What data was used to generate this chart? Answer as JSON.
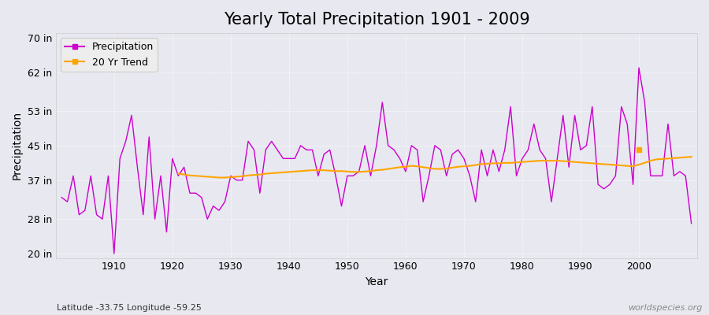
{
  "title": "Yearly Total Precipitation 1901 - 2009",
  "xlabel": "Year",
  "ylabel": "Precipitation",
  "subtitle": "Latitude -33.75 Longitude -59.25",
  "watermark": "worldspecies.org",
  "years": [
    1901,
    1902,
    1903,
    1904,
    1905,
    1906,
    1907,
    1908,
    1909,
    1910,
    1911,
    1912,
    1913,
    1914,
    1915,
    1916,
    1917,
    1918,
    1919,
    1920,
    1921,
    1922,
    1923,
    1924,
    1925,
    1926,
    1927,
    1928,
    1929,
    1930,
    1931,
    1932,
    1933,
    1934,
    1935,
    1936,
    1937,
    1938,
    1939,
    1940,
    1941,
    1942,
    1943,
    1944,
    1945,
    1946,
    1947,
    1948,
    1949,
    1950,
    1951,
    1952,
    1953,
    1954,
    1955,
    1956,
    1957,
    1958,
    1959,
    1960,
    1961,
    1962,
    1963,
    1964,
    1965,
    1966,
    1967,
    1968,
    1969,
    1970,
    1971,
    1972,
    1973,
    1974,
    1975,
    1976,
    1977,
    1978,
    1979,
    1980,
    1981,
    1982,
    1983,
    1984,
    1985,
    1986,
    1987,
    1988,
    1989,
    1990,
    1991,
    1992,
    1993,
    1994,
    1995,
    1996,
    1997,
    1998,
    1999,
    2000,
    2001,
    2002,
    2003,
    2004,
    2005,
    2006,
    2007,
    2008,
    2009
  ],
  "precip": [
    33,
    32,
    38,
    29,
    30,
    38,
    29,
    28,
    38,
    20,
    42,
    46,
    52,
    40,
    29,
    47,
    28,
    38,
    25,
    42,
    38,
    40,
    34,
    34,
    33,
    28,
    31,
    30,
    32,
    38,
    37,
    37,
    46,
    44,
    34,
    44,
    46,
    44,
    42,
    42,
    42,
    45,
    44,
    44,
    38,
    43,
    44,
    38,
    31,
    38,
    38,
    39,
    45,
    38,
    45,
    55,
    45,
    44,
    42,
    39,
    45,
    44,
    32,
    38,
    45,
    44,
    38,
    43,
    44,
    42,
    38,
    32,
    44,
    38,
    44,
    39,
    44,
    54,
    38,
    42,
    44,
    50,
    44,
    42,
    32,
    42,
    52,
    40,
    52,
    44,
    45,
    54,
    36,
    35,
    36,
    38,
    54,
    50,
    36,
    63,
    55,
    38,
    38,
    38,
    50,
    38,
    39,
    38,
    27
  ],
  "trend_years": [
    1921,
    1922,
    1923,
    1924,
    1925,
    1926,
    1927,
    1928,
    1929,
    1930,
    1931,
    1932,
    1933,
    1934,
    1935,
    1936,
    1937,
    1938,
    1939,
    1940,
    1941,
    1942,
    1943,
    1944,
    1945,
    1946,
    1947,
    1948,
    1949,
    1950,
    1951,
    1952,
    1953,
    1954,
    1955,
    1956,
    1957,
    1958,
    1959,
    1960,
    1961,
    1962,
    1963,
    1964,
    1965,
    1966,
    1967,
    1968,
    1969,
    1970,
    1971,
    1972,
    1973,
    1974,
    1975,
    1976,
    1977,
    1978,
    1979,
    1980,
    1981,
    1982,
    1983,
    1984,
    1985,
    1986,
    1987,
    1988,
    1989,
    1990,
    1991,
    1992,
    1993,
    1994,
    1995,
    1996,
    1997,
    1998,
    1999,
    2001,
    2002,
    2003,
    2004,
    2005,
    2006,
    2007,
    2008,
    2009
  ],
  "trend": [
    38.5,
    38.3,
    38.1,
    38.0,
    37.9,
    37.8,
    37.7,
    37.6,
    37.6,
    37.7,
    37.8,
    37.9,
    38.1,
    38.2,
    38.3,
    38.5,
    38.6,
    38.7,
    38.8,
    38.9,
    39.0,
    39.1,
    39.2,
    39.3,
    39.3,
    39.3,
    39.2,
    39.1,
    39.1,
    39.0,
    38.9,
    38.9,
    39.0,
    39.1,
    39.3,
    39.4,
    39.6,
    39.8,
    40.0,
    40.1,
    40.3,
    40.2,
    40.0,
    39.8,
    39.6,
    39.6,
    39.7,
    39.9,
    40.1,
    40.2,
    40.3,
    40.5,
    40.7,
    40.8,
    40.9,
    40.9,
    41.0,
    41.0,
    41.1,
    41.2,
    41.3,
    41.4,
    41.5,
    41.5,
    41.5,
    41.5,
    41.4,
    41.3,
    41.2,
    41.1,
    41.0,
    40.9,
    40.8,
    40.7,
    40.6,
    40.5,
    40.4,
    40.3,
    40.2,
    41.0,
    41.5,
    41.8,
    41.9,
    42.0,
    42.1,
    42.2,
    42.3,
    42.4
  ],
  "trend_single_point_year": 2000,
  "trend_single_point_value": 44,
  "precip_color": "#CC00CC",
  "trend_color": "#FFA500",
  "bg_color": "#e8e8f0",
  "plot_bg_color": "#e8e8f0",
  "yticks": [
    20,
    28,
    37,
    45,
    53,
    62,
    70
  ],
  "ytick_labels": [
    "20 in",
    "28 in",
    "37 in",
    "45 in",
    "53 in",
    "62 in",
    "70 in"
  ],
  "xticks": [
    1910,
    1920,
    1930,
    1940,
    1950,
    1960,
    1970,
    1980,
    1990,
    2000
  ],
  "xlim": [
    1900,
    2010
  ],
  "ylim": [
    19,
    71
  ],
  "title_fontsize": 15,
  "axis_label_fontsize": 10,
  "tick_fontsize": 9,
  "legend_fontsize": 9
}
